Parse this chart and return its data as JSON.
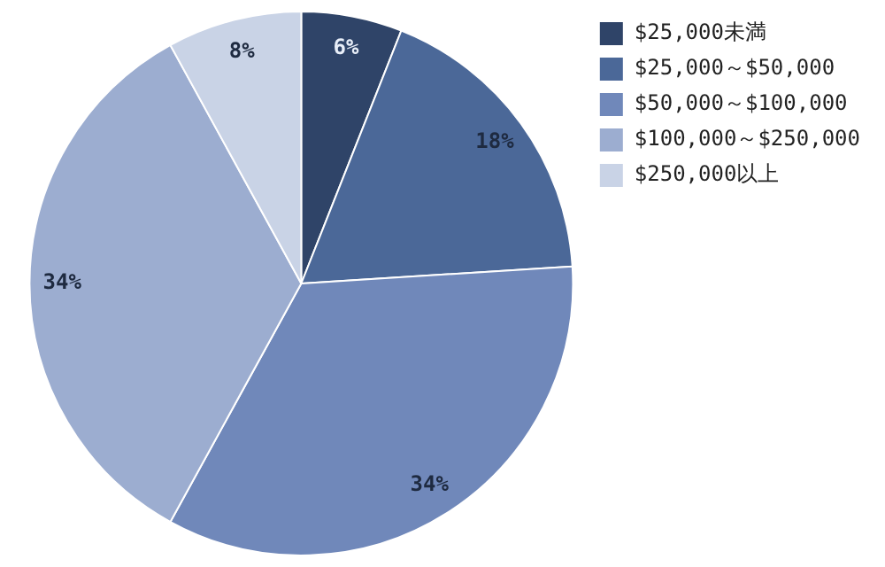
{
  "chart_data": {
    "type": "pie",
    "categories": [
      "$25,000未満",
      "$25,000～$50,000",
      "$50,000～$100,000",
      "$100,000～$250,000",
      "$250,000以上"
    ],
    "values": [
      6,
      18,
      34,
      34,
      8
    ],
    "value_labels": [
      "6%",
      "18%",
      "34%",
      "34%",
      "8%"
    ],
    "colors": [
      "#2f4468",
      "#4b6898",
      "#7088ba",
      "#9cadd0",
      "#c9d3e6"
    ],
    "legend": "top right"
  }
}
